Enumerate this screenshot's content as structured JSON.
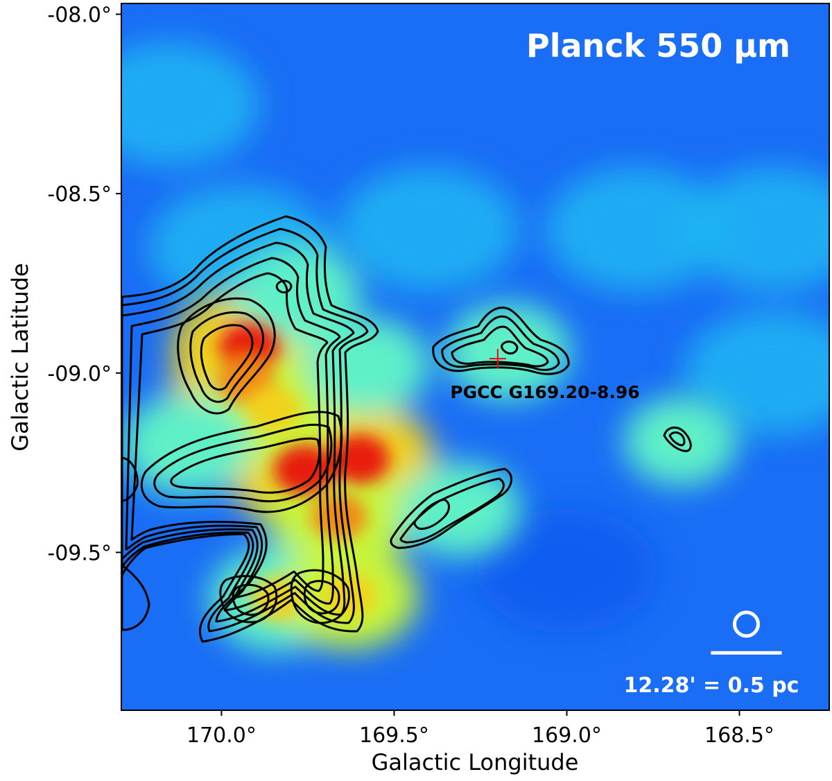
{
  "chart_data": {
    "type": "heatmap",
    "title": "Planck 550 μm",
    "xlabel": "Galactic Longitude",
    "ylabel": "Galactic Latitude",
    "xlim": [
      170.29,
      168.24
    ],
    "ylim": [
      -9.94,
      -7.97
    ],
    "x_ticks": [
      {
        "value": 170.0,
        "label": "170.0°"
      },
      {
        "value": 169.5,
        "label": "169.5°"
      },
      {
        "value": 169.0,
        "label": "169.0°"
      },
      {
        "value": 168.5,
        "label": "168.5°"
      }
    ],
    "y_ticks": [
      {
        "value": -8.0,
        "label": "-08.0°"
      },
      {
        "value": -8.5,
        "label": "-08.5°"
      },
      {
        "value": -9.0,
        "label": "-09.0°"
      },
      {
        "value": -9.5,
        "label": "-09.5°"
      }
    ],
    "colormap": [
      "#0000dd",
      "#0a5cf0",
      "#1fb6f2",
      "#5ef0c8",
      "#c8f53a",
      "#f2d21a",
      "#f08a16",
      "#e81e10"
    ],
    "background_color": "#1a6ef5",
    "emission_regions": [
      {
        "lon": 169.92,
        "lat": -8.93,
        "level": 1.0
      },
      {
        "lon": 169.93,
        "lat": -9.02,
        "level": 0.9
      },
      {
        "lon": 169.76,
        "lat": -9.27,
        "level": 1.0
      },
      {
        "lon": 169.6,
        "lat": -9.24,
        "level": 0.95
      },
      {
        "lon": 169.66,
        "lat": -9.4,
        "level": 0.8
      },
      {
        "lon": 169.85,
        "lat": -9.1,
        "level": 0.75
      },
      {
        "lon": 170.1,
        "lat": -9.2,
        "level": 0.6
      },
      {
        "lon": 169.78,
        "lat": -8.78,
        "level": 0.55
      },
      {
        "lon": 169.58,
        "lat": -8.98,
        "level": 0.5
      },
      {
        "lon": 169.84,
        "lat": -9.63,
        "level": 0.7
      },
      {
        "lon": 169.63,
        "lat": -9.62,
        "level": 0.75
      },
      {
        "lon": 169.17,
        "lat": -8.94,
        "level": 0.5
      },
      {
        "lon": 169.31,
        "lat": -9.38,
        "level": 0.45
      },
      {
        "lon": 168.67,
        "lat": -9.19,
        "level": 0.3
      }
    ],
    "background_patches": [
      {
        "lon": 170.15,
        "lat": -8.25,
        "level": 0.35
      },
      {
        "lon": 169.4,
        "lat": -8.6,
        "level": 0.3
      },
      {
        "lon": 168.4,
        "lat": -8.6,
        "level": 0.3
      },
      {
        "lon": 168.8,
        "lat": -8.6,
        "level": 0.3
      },
      {
        "lon": 169.0,
        "lat": -9.55,
        "level": 0.2
      },
      {
        "lon": 168.4,
        "lat": -9.0,
        "level": 0.25
      },
      {
        "lon": 169.95,
        "lat": -8.65,
        "level": 0.35
      }
    ],
    "source": {
      "label": "PGCC G169.20-8.96",
      "lon": 169.2,
      "lat": -8.96,
      "marker": "red-cross",
      "marker_color": "#ff0000"
    },
    "beam": {
      "lon": 168.48,
      "lat": -9.7,
      "color": "#ffffff"
    },
    "scalebar": {
      "label": "12.28' = 0.5 pc",
      "length_deg": 0.205,
      "lon_center": 168.48,
      "lat": -9.78,
      "color": "#ffffff"
    }
  }
}
